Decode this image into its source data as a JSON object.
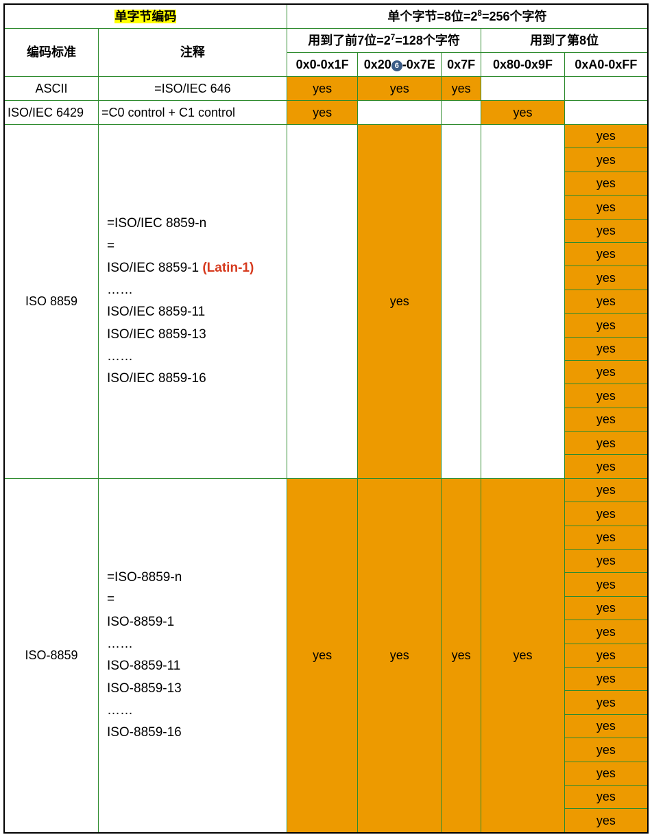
{
  "colors": {
    "highlight": "#ffff00",
    "orange": "#ed9a00",
    "border": "#2e8b2e",
    "outer": "#000000",
    "latin": "#d63a1e",
    "circle_bg": "#3b5c87"
  },
  "header": {
    "single_byte_encoding": "单字节编码",
    "byte_header_pre": "单个字节=8位=2",
    "byte_header_sup": "8",
    "byte_header_post": "=256个字符",
    "std": "编码标准",
    "note": "注释",
    "used7_pre": "用到了前7位=2",
    "used7_sup": "7",
    "used7_post": "=128个字符",
    "used8": "用到了第8位",
    "ranges": {
      "r1": "0x0-0x1F",
      "r2a": "0x20",
      "r2_circle": "6",
      "r2b": "-0x7E",
      "r3": "0x7F",
      "r4": "0x80-0x9F",
      "r5": "0xA0-0xFF"
    }
  },
  "rows": {
    "ascii": {
      "name": "ASCII",
      "note": "=ISO/IEC 646",
      "cells": [
        "yes",
        "yes",
        "yes",
        "",
        ""
      ]
    },
    "iec6429": {
      "name": "ISO/IEC 6429",
      "note": "=C0 control + C1 control",
      "cells": [
        "yes",
        "",
        "",
        "yes",
        ""
      ]
    },
    "iso8859": {
      "name": "ISO 8859",
      "note_lines": [
        "=ISO/IEC 8859-n",
        "=",
        {
          "text": "ISO/IEC 8859-1 ",
          "latin": "(Latin-1)"
        },
        "……",
        "ISO/IEC 8859-11",
        "ISO/IEC 8859-13",
        "……",
        "ISO/IEC 8859-16"
      ],
      "mid_cell": "yes",
      "right_cells": [
        "yes",
        "yes",
        "yes",
        "yes",
        "yes",
        "yes",
        "yes",
        "yes",
        "yes",
        "yes",
        "yes",
        "yes",
        "yes",
        "yes",
        "yes"
      ]
    },
    "iso_8859": {
      "name": "ISO-8859",
      "note_lines": [
        "=ISO-8859-n",
        "=",
        "ISO-8859-1",
        "……",
        "ISO-8859-11",
        "ISO-8859-13",
        "……",
        "ISO-8859-16"
      ],
      "cells": [
        "yes",
        "yes",
        "yes",
        "yes"
      ],
      "right_cells": [
        "yes",
        "yes",
        "yes",
        "yes",
        "yes",
        "yes",
        "yes",
        "yes",
        "yes",
        "yes",
        "yes",
        "yes",
        "yes",
        "yes",
        "yes"
      ]
    }
  }
}
